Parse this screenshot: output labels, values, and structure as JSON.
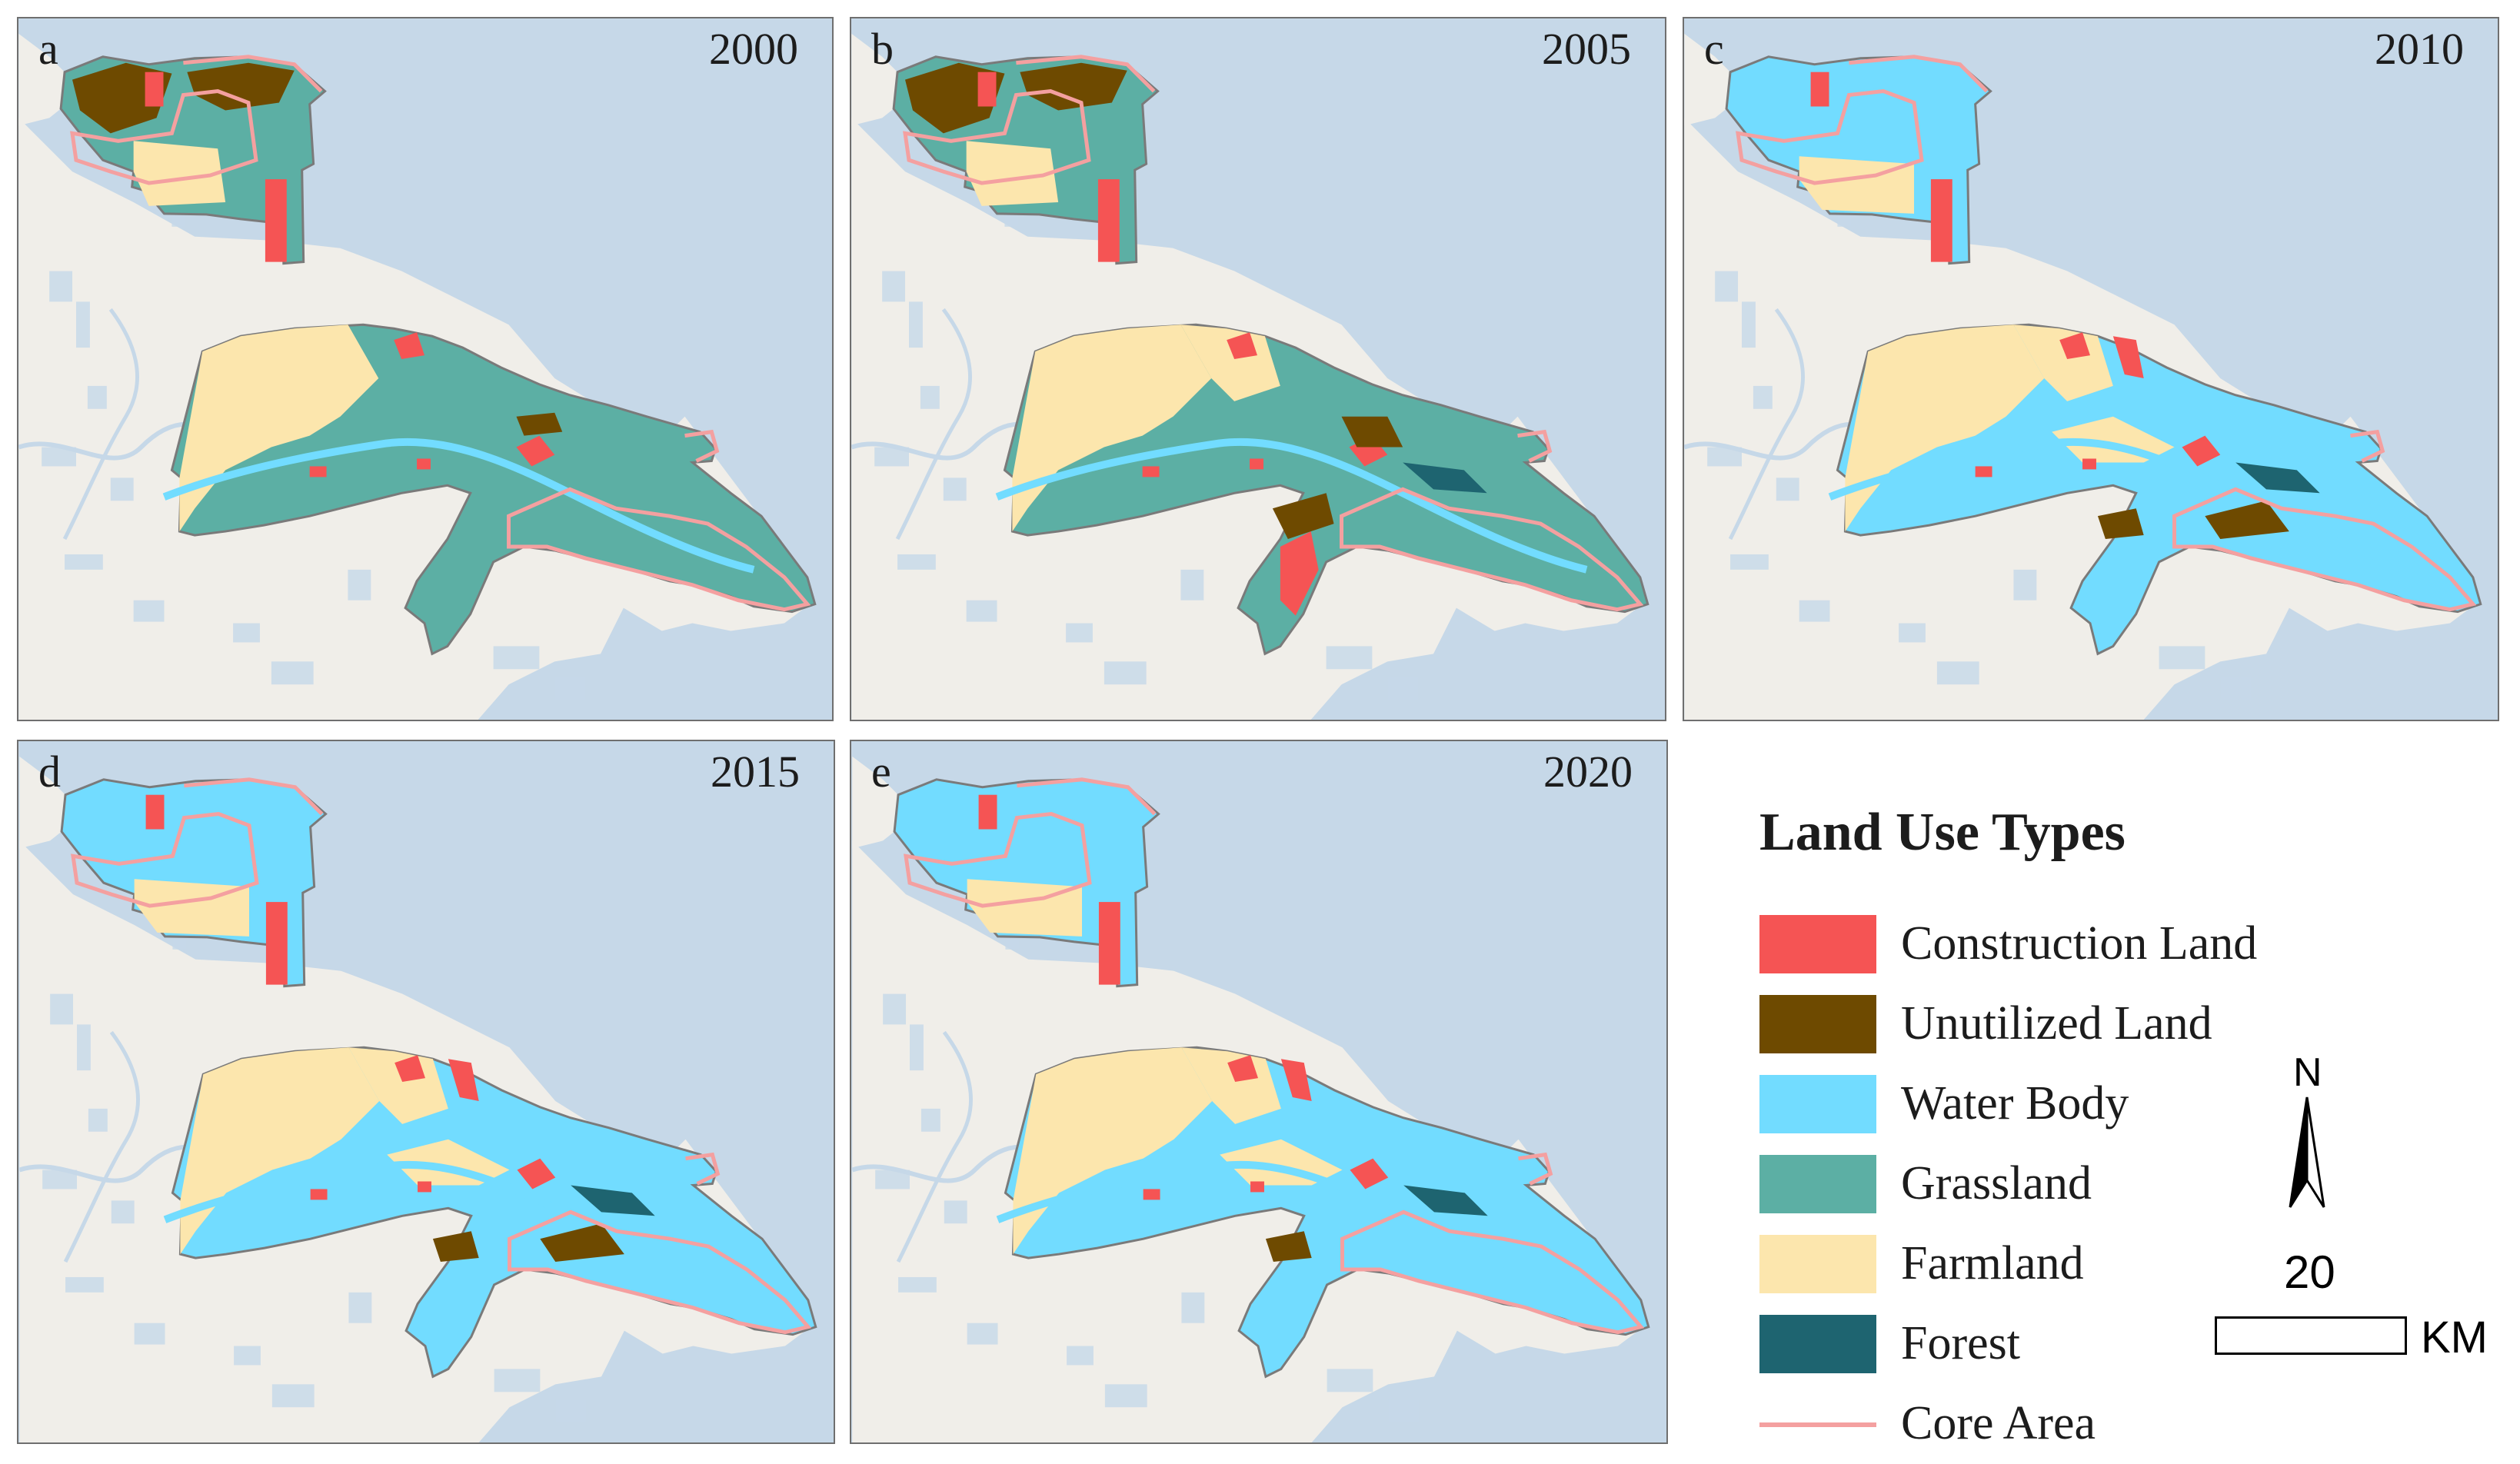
{
  "panels": [
    {
      "label": "a",
      "year": "2000",
      "variant": "2000"
    },
    {
      "label": "b",
      "year": "2005",
      "variant": "2005"
    },
    {
      "label": "c",
      "year": "2010",
      "variant": "2010"
    },
    {
      "label": "d",
      "year": "2015",
      "variant": "2015"
    },
    {
      "label": "e",
      "year": "2020",
      "variant": "2020"
    }
  ],
  "legend": {
    "title": "Land Use Types",
    "items": [
      {
        "label": "Construction Land",
        "color": "#f55454",
        "kind": "box"
      },
      {
        "label": "Unutilized Land",
        "color": "#6e4a00",
        "kind": "box"
      },
      {
        "label": "Water Body",
        "color": "#72dcff",
        "kind": "box"
      },
      {
        "label": "Grassland",
        "color": "#5cafa4",
        "kind": "box"
      },
      {
        "label": "Farmland",
        "color": "#fce6ad",
        "kind": "box"
      },
      {
        "label": "Forest",
        "color": "#1e6470",
        "kind": "box"
      },
      {
        "label": "Core Area",
        "color": "#f4a0a0",
        "kind": "line"
      }
    ]
  },
  "north_arrow": {
    "label": "N"
  },
  "scale_bar": {
    "value": "20",
    "unit": "KM"
  }
}
